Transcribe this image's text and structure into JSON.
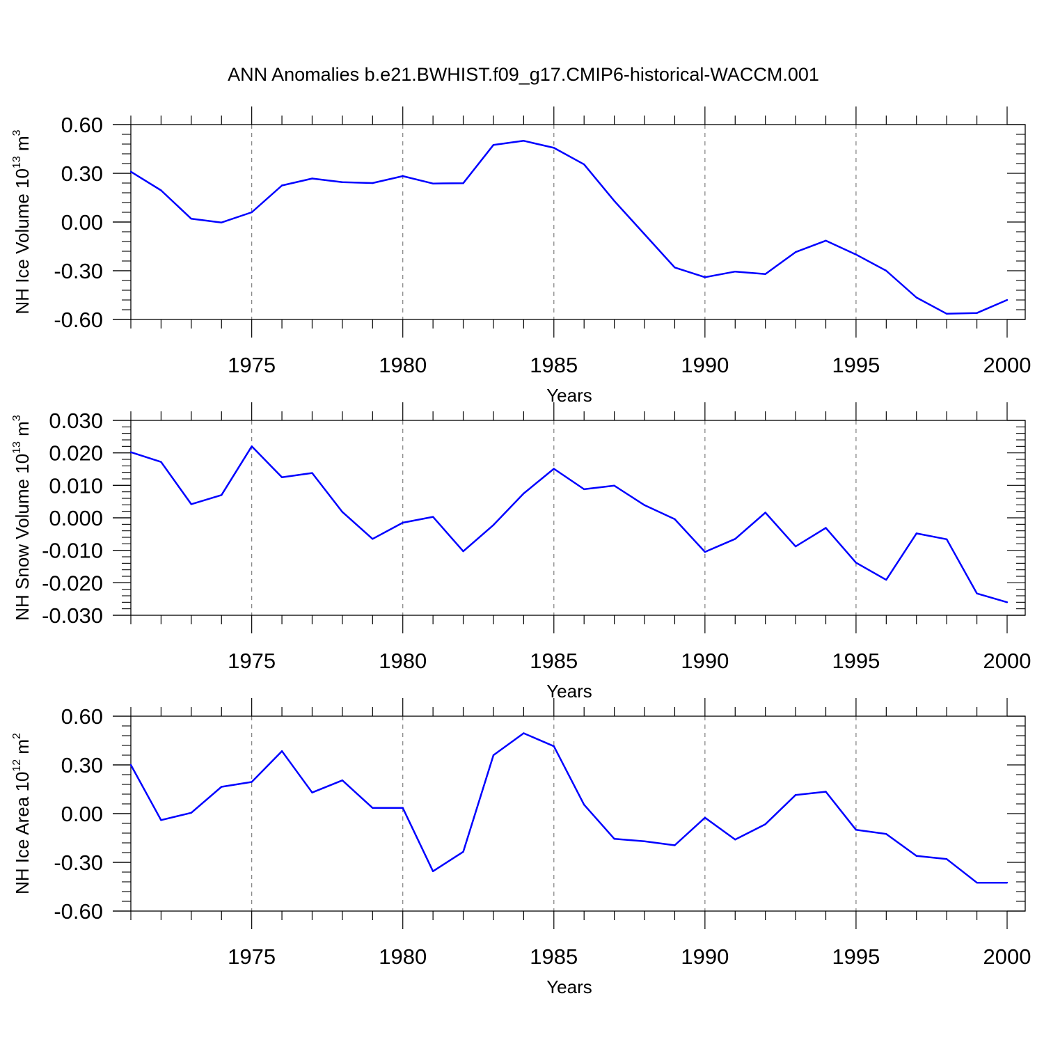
{
  "title": "ANN Anomalies b.e21.BWHIST.f09_g17.CMIP6-historical-WACCM.001",
  "colors": {
    "line": "#0000ff",
    "axes": "#000000",
    "grid": "#7f7f7f"
  },
  "chart_data": [
    {
      "type": "line",
      "title": "ANN Anomalies b.e21.BWHIST.f09_g17.CMIP6-historical-WACCM.001",
      "xlabel": "Years",
      "ylabel": "NH Ice Volume 10",
      "ylabel_exp": "13",
      "ylabel_unit": "m",
      "ylabel_unit_exp": "3",
      "xlim": [
        1971,
        2000
      ],
      "ylim": [
        -0.6,
        0.6
      ],
      "x_ticks": [
        1975,
        1980,
        1985,
        1990,
        1995,
        2000
      ],
      "x_tick_labels": [
        "1975",
        "1980",
        "1985",
        "1990",
        "1995",
        "2000"
      ],
      "y_ticks": [
        -0.6,
        -0.3,
        0.0,
        0.3,
        0.6
      ],
      "y_tick_labels": [
        "-0.60",
        "-0.30",
        "0.00",
        "0.30",
        "0.60"
      ],
      "grid": "vertical dashed at labeled years",
      "x": [
        1971,
        1972,
        1973,
        1974,
        1975,
        1976,
        1977,
        1978,
        1979,
        1980,
        1981,
        1982,
        1983,
        1984,
        1985,
        1986,
        1987,
        1988,
        1989,
        1990,
        1991,
        1992,
        1993,
        1994,
        1995,
        1996,
        1997,
        1998,
        1999,
        2000
      ],
      "values": [
        0.31,
        0.195,
        0.02,
        -0.003,
        0.06,
        0.225,
        0.268,
        0.245,
        0.24,
        0.283,
        0.237,
        0.239,
        0.475,
        0.5,
        0.457,
        0.355,
        0.13,
        -0.075,
        -0.28,
        -0.34,
        -0.305,
        -0.32,
        -0.185,
        -0.115,
        -0.2,
        -0.3,
        -0.465,
        -0.565,
        -0.56,
        -0.48
      ]
    },
    {
      "type": "line",
      "xlabel": "Years",
      "ylabel": "NH Snow Volume 10",
      "ylabel_exp": "13",
      "ylabel_unit": "m",
      "ylabel_unit_exp": "3",
      "xlim": [
        1971,
        2000
      ],
      "ylim": [
        -0.03,
        0.03
      ],
      "x_ticks": [
        1975,
        1980,
        1985,
        1990,
        1995,
        2000
      ],
      "x_tick_labels": [
        "1975",
        "1980",
        "1985",
        "1990",
        "1995",
        "2000"
      ],
      "y_ticks": [
        -0.03,
        -0.02,
        -0.01,
        0.0,
        0.01,
        0.02,
        0.03
      ],
      "y_tick_labels": [
        "-0.030",
        "-0.020",
        "-0.010",
        "0.000",
        "0.010",
        "0.020",
        "0.030"
      ],
      "grid": "vertical dashed at labeled years",
      "x": [
        1971,
        1972,
        1973,
        1974,
        1975,
        1976,
        1977,
        1978,
        1979,
        1980,
        1981,
        1982,
        1983,
        1984,
        1985,
        1986,
        1987,
        1988,
        1989,
        1990,
        1991,
        1992,
        1993,
        1994,
        1995,
        1996,
        1997,
        1998,
        1999,
        2000
      ],
      "values": [
        0.0202,
        0.0172,
        0.0042,
        0.007,
        0.022,
        0.0125,
        0.0138,
        0.0018,
        -0.0065,
        -0.0015,
        0.0003,
        -0.0103,
        -0.0022,
        0.0075,
        0.0151,
        0.0088,
        0.0099,
        0.0039,
        -0.0004,
        -0.0105,
        -0.0065,
        0.0016,
        -0.0088,
        -0.0031,
        -0.0138,
        -0.0191,
        -0.0048,
        -0.0066,
        -0.0233,
        -0.026
      ]
    },
    {
      "type": "line",
      "xlabel": "Years",
      "ylabel": "NH Ice Area 10",
      "ylabel_exp": "12",
      "ylabel_unit": "m",
      "ylabel_unit_exp": "2",
      "xlim": [
        1971,
        2000
      ],
      "ylim": [
        -0.6,
        0.6
      ],
      "x_ticks": [
        1975,
        1980,
        1985,
        1990,
        1995,
        2000
      ],
      "x_tick_labels": [
        "1975",
        "1980",
        "1985",
        "1990",
        "1995",
        "2000"
      ],
      "y_ticks": [
        -0.6,
        -0.3,
        0.0,
        0.3,
        0.6
      ],
      "y_tick_labels": [
        "-0.60",
        "-0.30",
        "0.00",
        "0.30",
        "0.60"
      ],
      "grid": "vertical dashed at labeled years",
      "x": [
        1971,
        1972,
        1973,
        1974,
        1975,
        1976,
        1977,
        1978,
        1979,
        1980,
        1981,
        1982,
        1983,
        1984,
        1985,
        1986,
        1987,
        1988,
        1989,
        1990,
        1991,
        1992,
        1993,
        1994,
        1995,
        1996,
        1997,
        1998,
        1999,
        2000
      ],
      "values": [
        0.3,
        -0.04,
        0.005,
        0.165,
        0.195,
        0.385,
        0.13,
        0.205,
        0.035,
        0.035,
        -0.355,
        -0.235,
        0.36,
        0.495,
        0.415,
        0.055,
        -0.155,
        -0.17,
        -0.195,
        -0.025,
        -0.16,
        -0.065,
        0.115,
        0.135,
        -0.1,
        -0.125,
        -0.26,
        -0.28,
        -0.425,
        -0.425
      ]
    }
  ]
}
